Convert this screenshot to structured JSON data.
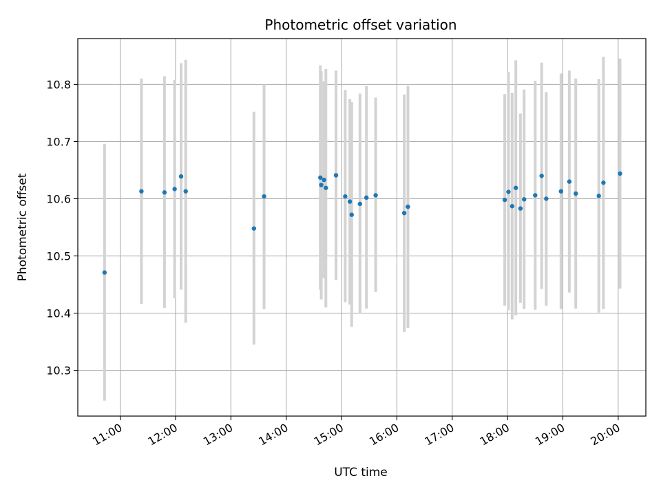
{
  "chart_data": {
    "type": "scatter",
    "title": "Photometric offset variation",
    "xlabel": "UTC time",
    "ylabel": "Photometric offset",
    "xlim": [
      "10:14",
      "20:30"
    ],
    "ylim": [
      10.22,
      10.88
    ],
    "x_ticks": [
      "11:00",
      "12:00",
      "13:00",
      "14:00",
      "15:00",
      "16:00",
      "17:00",
      "18:00",
      "19:00",
      "20:00"
    ],
    "y_ticks": [
      10.3,
      10.4,
      10.5,
      10.6,
      10.7,
      10.8
    ],
    "y_tick_labels": [
      "10.3",
      "10.4",
      "10.5",
      "10.6",
      "10.7",
      "10.8"
    ],
    "grid": true,
    "colors": {
      "point": "#1f77b4",
      "errorbar": "#d3d3d3",
      "grid": "#b0b0b0"
    },
    "points": [
      {
        "x": "10:43",
        "y": 10.471,
        "ylow": 10.247,
        "yhigh": 10.696
      },
      {
        "x": "11:23",
        "y": 10.613,
        "ylow": 10.416,
        "yhigh": 10.81
      },
      {
        "x": "11:48",
        "y": 10.611,
        "ylow": 10.409,
        "yhigh": 10.814
      },
      {
        "x": "11:59",
        "y": 10.617,
        "ylow": 10.426,
        "yhigh": 10.808
      },
      {
        "x": "12:06",
        "y": 10.639,
        "ylow": 10.441,
        "yhigh": 10.837
      },
      {
        "x": "12:11",
        "y": 10.613,
        "ylow": 10.383,
        "yhigh": 10.843
      },
      {
        "x": "13:25",
        "y": 10.548,
        "ylow": 10.345,
        "yhigh": 10.752
      },
      {
        "x": "13:36",
        "y": 10.604,
        "ylow": 10.407,
        "yhigh": 10.8
      },
      {
        "x": "14:37",
        "y": 10.637,
        "ylow": 10.441,
        "yhigh": 10.833
      },
      {
        "x": "14:38",
        "y": 10.624,
        "ylow": 10.424,
        "yhigh": 10.823
      },
      {
        "x": "14:41",
        "y": 10.633,
        "ylow": 10.461,
        "yhigh": 10.805
      },
      {
        "x": "14:43",
        "y": 10.619,
        "ylow": 10.41,
        "yhigh": 10.827
      },
      {
        "x": "14:54",
        "y": 10.641,
        "ylow": 10.458,
        "yhigh": 10.824
      },
      {
        "x": "15:04",
        "y": 10.604,
        "ylow": 10.419,
        "yhigh": 10.79
      },
      {
        "x": "15:09",
        "y": 10.595,
        "ylow": 10.415,
        "yhigh": 10.774
      },
      {
        "x": "15:11",
        "y": 10.572,
        "ylow": 10.376,
        "yhigh": 10.769
      },
      {
        "x": "15:20",
        "y": 10.591,
        "ylow": 10.399,
        "yhigh": 10.784
      },
      {
        "x": "15:27",
        "y": 10.602,
        "ylow": 10.408,
        "yhigh": 10.797
      },
      {
        "x": "15:37",
        "y": 10.606,
        "ylow": 10.437,
        "yhigh": 10.777
      },
      {
        "x": "16:08",
        "y": 10.575,
        "ylow": 10.367,
        "yhigh": 10.782
      },
      {
        "x": "16:12",
        "y": 10.586,
        "ylow": 10.374,
        "yhigh": 10.797
      },
      {
        "x": "17:57",
        "y": 10.598,
        "ylow": 10.413,
        "yhigh": 10.783
      },
      {
        "x": "18:01",
        "y": 10.612,
        "ylow": 10.405,
        "yhigh": 10.821
      },
      {
        "x": "18:05",
        "y": 10.587,
        "ylow": 10.389,
        "yhigh": 10.785
      },
      {
        "x": "18:09",
        "y": 10.619,
        "ylow": 10.396,
        "yhigh": 10.842
      },
      {
        "x": "18:14",
        "y": 10.583,
        "ylow": 10.418,
        "yhigh": 10.749
      },
      {
        "x": "18:18",
        "y": 10.599,
        "ylow": 10.407,
        "yhigh": 10.791
      },
      {
        "x": "18:30",
        "y": 10.606,
        "ylow": 10.406,
        "yhigh": 10.806
      },
      {
        "x": "18:37",
        "y": 10.64,
        "ylow": 10.442,
        "yhigh": 10.838
      },
      {
        "x": "18:42",
        "y": 10.6,
        "ylow": 10.413,
        "yhigh": 10.786
      },
      {
        "x": "18:58",
        "y": 10.613,
        "ylow": 10.407,
        "yhigh": 10.819
      },
      {
        "x": "19:07",
        "y": 10.63,
        "ylow": 10.436,
        "yhigh": 10.824
      },
      {
        "x": "19:14",
        "y": 10.609,
        "ylow": 10.408,
        "yhigh": 10.81
      },
      {
        "x": "19:39",
        "y": 10.605,
        "ylow": 10.401,
        "yhigh": 10.809
      },
      {
        "x": "19:44",
        "y": 10.628,
        "ylow": 10.407,
        "yhigh": 10.848
      },
      {
        "x": "20:02",
        "y": 10.644,
        "ylow": 10.443,
        "yhigh": 10.845
      }
    ]
  }
}
